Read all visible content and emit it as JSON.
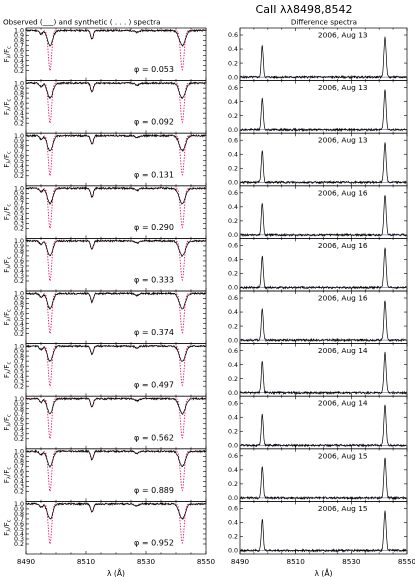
{
  "figure": {
    "title": "CaII λλ8498,8542"
  },
  "chart_data": [
    {
      "type": "line",
      "title": "Observed (___) and synthetic ( . . . ) spectra",
      "xlabel": "λ (Å)",
      "ylabel": "F_λ/F_c",
      "ylabel_main": "F",
      "ylabel_sub1": "λ",
      "ylabel_mid": "/F",
      "ylabel_sub2": "c",
      "xlim": [
        8490,
        8550
      ],
      "ylim": [
        0.0,
        1.05
      ],
      "x_ticks": [
        8490,
        8510,
        8530,
        8550
      ],
      "y_ticks": [
        0.2,
        0.3,
        0.4,
        0.5,
        0.6,
        0.7,
        0.8,
        0.9,
        1.0
      ],
      "line_centers": [
        8498.0,
        8512.0,
        8542.1
      ],
      "series": [
        "Observed",
        "Synthetic"
      ],
      "panels": [
        {
          "phase": "φ = 0.053"
        },
        {
          "phase": "φ = 0.092"
        },
        {
          "phase": "φ = 0.131"
        },
        {
          "phase": "φ = 0.290"
        },
        {
          "phase": "φ = 0.333"
        },
        {
          "phase": "φ = 0.374"
        },
        {
          "phase": "φ = 0.497"
        },
        {
          "phase": "φ = 0.562"
        },
        {
          "phase": "φ = 0.889"
        },
        {
          "phase": "φ = 0.952"
        }
      ]
    },
    {
      "type": "line",
      "title": "Difference spectra",
      "xlabel": "λ (Å)",
      "xlim": [
        8490,
        8550
      ],
      "ylim": [
        -0.05,
        0.7
      ],
      "x_ticks": [
        8490,
        8510,
        8530,
        8550
      ],
      "y_ticks": [
        0.0,
        0.2,
        0.4,
        0.6
      ],
      "emission_peaks": [
        {
          "x": 8498.0,
          "y": 0.45
        },
        {
          "x": 8542.1,
          "y": 0.57
        }
      ],
      "panels": [
        {
          "date": "2006, Aug 13"
        },
        {
          "date": "2006, Aug 13"
        },
        {
          "date": "2006, Aug 13"
        },
        {
          "date": "2006, Aug 16"
        },
        {
          "date": "2006, Aug 16"
        },
        {
          "date": "2006, Aug 16"
        },
        {
          "date": "2006, Aug 14"
        },
        {
          "date": "2006, Aug 14"
        },
        {
          "date": "2006, Aug 15"
        },
        {
          "date": "2006, Aug 15"
        }
      ]
    }
  ],
  "colors": {
    "observed": "#000000",
    "synthetic": "#e8195a",
    "zero_line": "#3a3aaa"
  }
}
